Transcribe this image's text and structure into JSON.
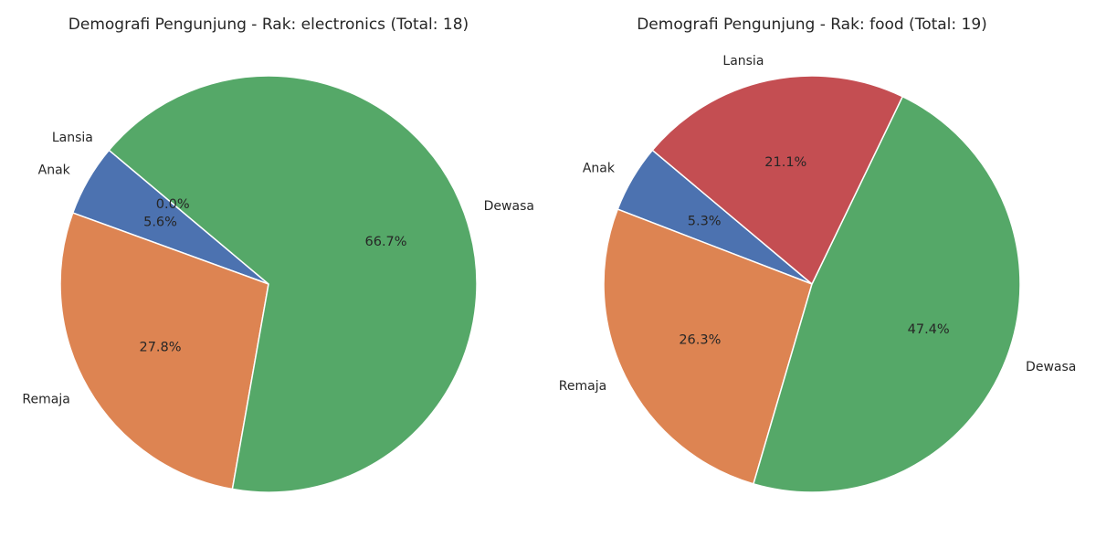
{
  "chart_data": [
    {
      "type": "pie",
      "title": "Demografi Pengunjung - Rak: electronics (Total: 18)",
      "start_angle_deg": 140,
      "direction": "counterclockwise",
      "slices": [
        {
          "label": "Anak",
          "value": 1,
          "pct_label": "5.6%",
          "color": "#4c72b0"
        },
        {
          "label": "Remaja",
          "value": 5,
          "pct_label": "27.8%",
          "color": "#dd8452"
        },
        {
          "label": "Dewasa",
          "value": 12,
          "pct_label": "66.7%",
          "color": "#55a868"
        },
        {
          "label": "Lansia",
          "value": 0,
          "pct_label": "0.0%",
          "color": "#c44e52"
        }
      ]
    },
    {
      "type": "pie",
      "title": "Demografi Pengunjung - Rak: food (Total: 19)",
      "start_angle_deg": 140,
      "direction": "counterclockwise",
      "slices": [
        {
          "label": "Anak",
          "value": 1,
          "pct_label": "5.3%",
          "color": "#4c72b0"
        },
        {
          "label": "Remaja",
          "value": 5,
          "pct_label": "26.3%",
          "color": "#dd8452"
        },
        {
          "label": "Dewasa",
          "value": 9,
          "pct_label": "47.4%",
          "color": "#55a868"
        },
        {
          "label": "Lansia",
          "value": 4,
          "pct_label": "21.1%",
          "color": "#c44e52"
        }
      ]
    }
  ]
}
